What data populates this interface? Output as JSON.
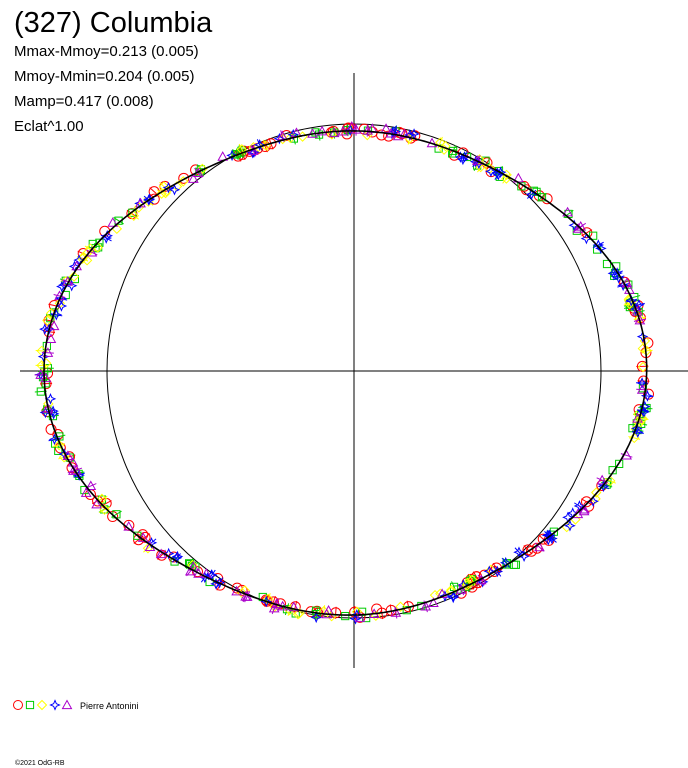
{
  "chart_data": {
    "type": "polar-lightcurve",
    "title": "(327) Columbia",
    "stats": [
      "Mmax-Mmoy=0.213 (0.005)",
      "Mmoy-Mmin=0.204 (0.005)",
      "Mamp=0.417 (0.008)",
      "Eclat^1.00"
    ],
    "reference_circle_radius": 1.0,
    "axis_range": [
      -1.2,
      1.2
    ],
    "model_curve": {
      "type": "polar-fourier",
      "a0": 1.07,
      "terms": [
        {
          "k": 1,
          "cos": -0.03,
          "sin": -0.004
        },
        {
          "k": 2,
          "cos": 0.12,
          "sin": 0.004
        },
        {
          "k": 3,
          "cos": -0.005,
          "sin": 0.004
        },
        {
          "k": 4,
          "cos": 0.03,
          "sin": 0.0
        }
      ],
      "point_count": 360
    },
    "series": [
      {
        "marker": "circle",
        "color": "#ff0000",
        "count": 110,
        "scatter": 0.018
      },
      {
        "marker": "square",
        "color": "#00cc00",
        "count": 110,
        "scatter": 0.02
      },
      {
        "marker": "diamond",
        "color": "#ffff00",
        "count": 90,
        "scatter": 0.018
      },
      {
        "marker": "star4",
        "color": "#0000ff",
        "count": 100,
        "scatter": 0.02
      },
      {
        "marker": "triangle",
        "color": "#aa00cc",
        "count": 80,
        "scatter": 0.018
      }
    ],
    "legend": {
      "observer": "Pierre Antonini"
    },
    "copyright": "©2021 OdG-RB"
  }
}
